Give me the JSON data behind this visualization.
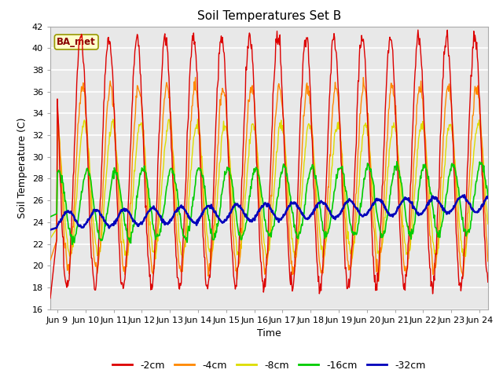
{
  "title": "Soil Temperatures Set B",
  "xlabel": "Time",
  "ylabel": "Soil Temperature (C)",
  "ylim": [
    16,
    42
  ],
  "yticks": [
    16,
    18,
    20,
    22,
    24,
    26,
    28,
    30,
    32,
    34,
    36,
    38,
    40,
    42
  ],
  "x_labels": [
    "Jun 9",
    "Jun 10",
    "Jun 11",
    "Jun 12",
    "Jun 13",
    "Jun 14",
    "Jun 15",
    "Jun 16",
    "Jun 17",
    "Jun 18",
    "Jun 19",
    "Jun 20",
    "Jun 21",
    "Jun 22",
    "Jun 23",
    "Jun 24"
  ],
  "colors": {
    "-2cm": "#dd0000",
    "-4cm": "#ff8800",
    "-8cm": "#dddd00",
    "-16cm": "#00cc00",
    "-32cm": "#0000bb"
  },
  "legend_labels": [
    "-2cm",
    "-4cm",
    "-8cm",
    "-16cm",
    "-32cm"
  ],
  "fig_bg": "#ffffff",
  "plot_bg": "#e8e8e8",
  "grid_color": "#ffffff",
  "annotation_text": "BA_met",
  "annotation_bg": "#ffffcc",
  "annotation_border": "#999900",
  "title_fontsize": 11,
  "axis_label_fontsize": 9,
  "tick_fontsize": 8
}
